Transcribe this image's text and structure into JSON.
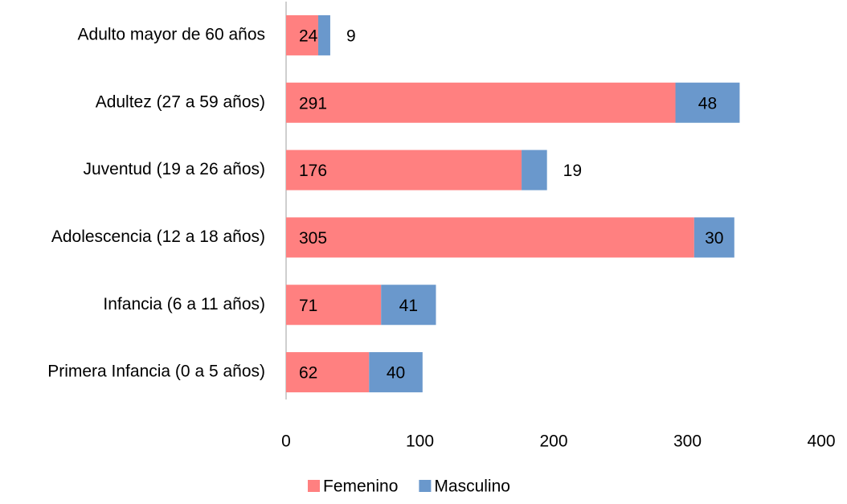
{
  "chart_data": {
    "type": "stacked-barh",
    "categories": [
      "Adulto mayor de 60 años",
      "Adultez (27 a 59 años)",
      "Juventud (19 a 26 años)",
      "Adolescencia (12 a 18 años)",
      "Infancia (6 a 11 años)",
      "Primera Infancia (0 a 5 años)"
    ],
    "series": [
      {
        "name": "Femenino",
        "color": "#ff8080",
        "values": [
          24,
          291,
          176,
          305,
          71,
          62
        ]
      },
      {
        "name": "Masculino",
        "color": "#6a98cc",
        "values": [
          9,
          48,
          19,
          30,
          41,
          40
        ]
      }
    ],
    "xlim": [
      0,
      400
    ],
    "xticks": [
      0,
      100,
      200,
      300,
      400
    ],
    "grid": false,
    "legend": "bottom"
  }
}
